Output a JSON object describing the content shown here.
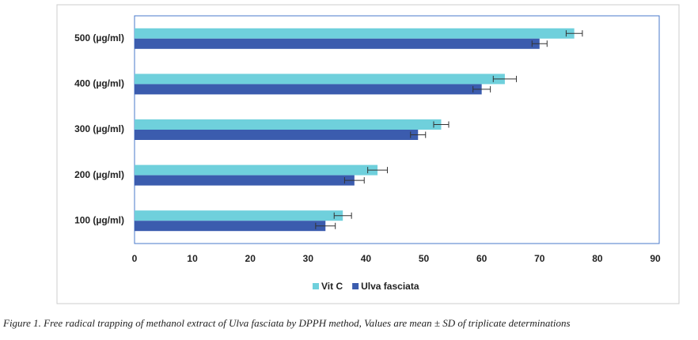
{
  "chart_data": {
    "type": "bar",
    "orientation": "horizontal",
    "categories": [
      "500 (µg/ml)",
      "400 (µg/ml)",
      "300 (µg/ml)",
      "200 (µg/ml)",
      "100 (µg/ml)"
    ],
    "series": [
      {
        "name": "Vit C",
        "color": "#6fd0dc",
        "values": [
          76,
          64,
          53,
          42,
          36
        ],
        "errors": [
          1.4,
          2,
          1.3,
          1.7,
          1.5
        ]
      },
      {
        "name": "Ulva fasciata",
        "color": "#3b5cae",
        "values": [
          70,
          60,
          49,
          38,
          33
        ],
        "errors": [
          1.3,
          1.5,
          1.3,
          1.7,
          1.7
        ]
      }
    ],
    "xlim": [
      0,
      90
    ],
    "xticks": [
      0,
      10,
      20,
      30,
      40,
      50,
      60,
      70,
      80,
      90
    ],
    "legend": "bottom",
    "caption": "Figure 1. Free radical trapping of methanol extract of Ulva fasciata by DPPH method, Values are mean ± SD of triplicate determinations"
  }
}
